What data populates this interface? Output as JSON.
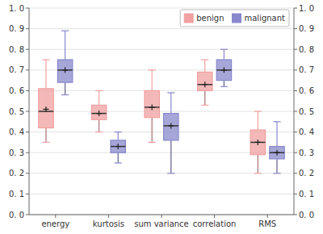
{
  "chart_data": {
    "type": "box",
    "categories": [
      "energy",
      "kurtosis",
      "sum variance",
      "correlation",
      "RMS"
    ],
    "series": [
      {
        "name": "benign",
        "color": "#f0a0a0",
        "whislo": [
          0.35,
          0.4,
          0.35,
          0.53,
          0.2
        ],
        "q1": [
          0.42,
          0.46,
          0.47,
          0.6,
          0.29
        ],
        "med": [
          0.5,
          0.49,
          0.52,
          0.63,
          0.35
        ],
        "q3": [
          0.61,
          0.53,
          0.6,
          0.69,
          0.41
        ],
        "whishi": [
          0.75,
          0.6,
          0.7,
          0.75,
          0.5
        ],
        "mean": [
          0.51,
          0.49,
          0.52,
          0.63,
          0.35
        ]
      },
      {
        "name": "malignant",
        "color": "#8888cc",
        "whislo": [
          0.58,
          0.25,
          0.2,
          0.62,
          0.2
        ],
        "q1": [
          0.64,
          0.3,
          0.36,
          0.65,
          0.27
        ],
        "med": [
          0.7,
          0.33,
          0.43,
          0.7,
          0.3
        ],
        "q3": [
          0.75,
          0.36,
          0.49,
          0.75,
          0.33
        ],
        "whishi": [
          0.89,
          0.4,
          0.59,
          0.8,
          0.45
        ],
        "mean": [
          0.7,
          0.33,
          0.43,
          0.7,
          0.3
        ]
      }
    ],
    "ylim": [
      0.0,
      1.0
    ],
    "yticks": [
      {
        "value": 0.0,
        "label": "0. 0"
      },
      {
        "value": 0.1,
        "label": "0. 1"
      },
      {
        "value": 0.2,
        "label": "0. 2"
      },
      {
        "value": 0.3,
        "label": "0. 3"
      },
      {
        "value": 0.4,
        "label": "0. 4"
      },
      {
        "value": 0.5,
        "label": "0. 5"
      },
      {
        "value": 0.6,
        "label": "0. 6"
      },
      {
        "value": 0.7,
        "label": "0. 7"
      },
      {
        "value": 0.8,
        "label": "0. 8"
      },
      {
        "value": 0.9,
        "label": "0. 9"
      },
      {
        "value": 1.0,
        "label": "1. 0"
      }
    ],
    "y2lim": [
      0.0,
      1.0
    ],
    "y2ticks": [
      {
        "value": 0.0,
        "label": "0. 0"
      },
      {
        "value": 0.1,
        "label": "0. 1"
      },
      {
        "value": 0.2,
        "label": "0. 2"
      },
      {
        "value": 0.3,
        "label": "0. 3"
      },
      {
        "value": 0.4,
        "label": "0. 4"
      },
      {
        "value": 0.5,
        "label": "0. 5"
      },
      {
        "value": 0.6,
        "label": "0. 6"
      },
      {
        "value": 0.7,
        "label": "0. 7"
      },
      {
        "value": 0.8,
        "label": "0. 8"
      },
      {
        "value": 0.9,
        "label": "0. 9"
      },
      {
        "value": 1.0,
        "label": "1. 0"
      }
    ],
    "grid": true,
    "legend": "top-right"
  }
}
